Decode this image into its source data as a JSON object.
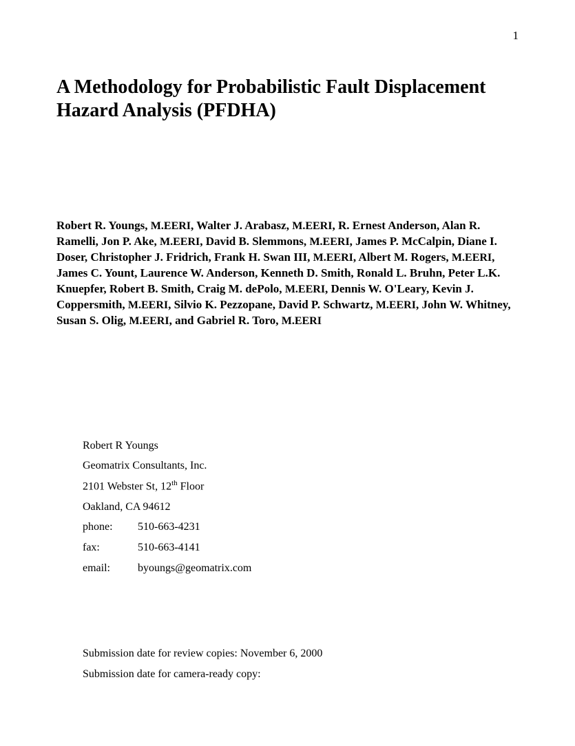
{
  "page_number": "1",
  "title": "A Methodology for Probabilistic Fault Displacement Hazard Analysis (PFDHA)",
  "authors_html": "Robert R. Youngs, <span class=\"small-caps\">M.EERI</span>, Walter J. Arabasz, <span class=\"small-caps\">M.EERI</span>, R. Ernest Anderson, Alan R. Ramelli, Jon P. Ake, <span class=\"small-caps\">M.EERI</span>, David B. Slemmons, <span class=\"small-caps\">M.EERI</span>, James P. McCalpin, Diane I. Doser, Christopher J. Fridrich, Frank H. Swan III, <span class=\"small-caps\">M.EERI</span>, Albert M. Rogers, <span class=\"small-caps\">M.EERI</span>, James C. Yount, Laurence W. Anderson, Kenneth D. Smith, Ronald L. Bruhn, Peter L.K. Knuepfer, Robert B. Smith, Craig M. dePolo, <span class=\"small-caps\">M.EERI</span>, Dennis W. O'Leary, Kevin J. Coppersmith, <span class=\"small-caps\">M.EERI</span>, Silvio K. Pezzopane, David P. Schwartz, <span class=\"small-caps\">M.EERI</span>, John W. Whitney, Susan S. Olig, <span class=\"small-caps\">M.EERI</span>, and Gabriel R. Toro, <span class=\"small-caps\">M.EERI</span>",
  "contact": {
    "name": "Robert R Youngs",
    "company": "Geomatrix Consultants, Inc.",
    "address_line1_html": "2101 Webster St, 12<span class=\"sup\">th</span> Floor",
    "address_line2": "Oakland, CA 94612",
    "phone_label": "phone:",
    "phone_value": "510-663-4231",
    "fax_label": "fax:",
    "fax_value": "510-663-4141",
    "email_label": "email:",
    "email_value": "byoungs@geomatrix.com"
  },
  "submission": {
    "review_line": "Submission date for review copies: November 6, 2000",
    "camera_line": "Submission date for camera-ready copy:"
  },
  "colors": {
    "background": "#ffffff",
    "text": "#000000"
  },
  "typography": {
    "title_fontsize": 28,
    "body_fontsize": 17,
    "contact_fontsize": 16,
    "font_family": "Times New Roman"
  }
}
